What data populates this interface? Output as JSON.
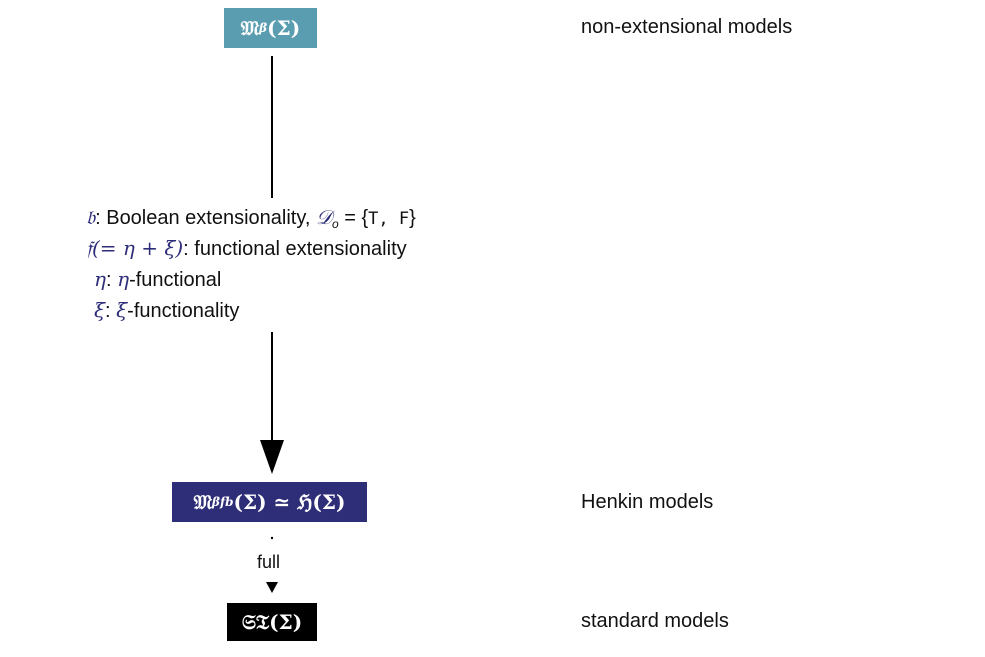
{
  "colors": {
    "top_box": "#5b9db0",
    "henkin_box": "#2e2e78",
    "standard_box": "#000000",
    "symbol": "#2e2e78"
  },
  "nodes": {
    "top": {
      "main": "𝔐",
      "sub": "β",
      "rest": "(Σ)",
      "label": "non-extensional models"
    },
    "henkin": {
      "main": "𝔐",
      "sub": "βfb",
      "rest": "(Σ) ≃ ℌ(Σ)",
      "label": "Henkin models"
    },
    "standard": {
      "text": "𝔖𝔗(Σ)",
      "label": "standard models"
    }
  },
  "conditions": {
    "b": {
      "symbol": "𝔟",
      "text_a": ": Boolean extensionality, ",
      "math": "𝒟",
      "math_sub": "o",
      "eq": " = {",
      "tf": "T, F",
      "close": "}"
    },
    "f": {
      "symbol": "𝔣",
      "math": "(= η + ξ)",
      "text": ": functional extensionality"
    },
    "eta": {
      "symbol": "η",
      "sep": ": ",
      "symbol2": "η",
      "text": "-functional"
    },
    "xi": {
      "symbol": "ξ",
      "sep": ": ",
      "symbol2": "ξ",
      "text": "-functionality"
    }
  },
  "edges": {
    "full_label": "full"
  }
}
